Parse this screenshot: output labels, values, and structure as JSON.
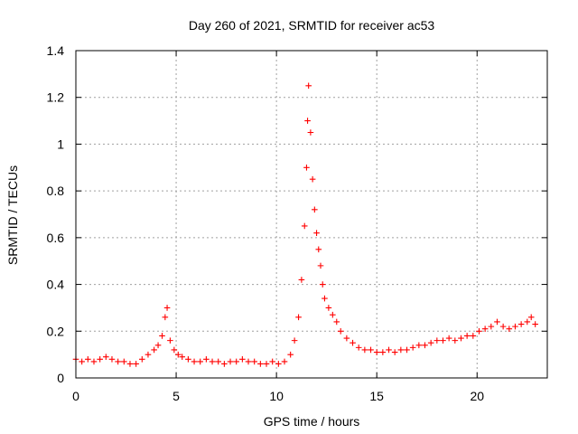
{
  "chart_data": {
    "type": "scatter",
    "title": "Day 260 of 2021, SRMTID for receiver ac53",
    "xlabel": "GPS time / hours",
    "ylabel": "SRMTID / TECUs",
    "xlim": [
      0,
      23.5
    ],
    "ylim": [
      0,
      1.4
    ],
    "x_ticks": [
      0,
      5,
      10,
      15,
      20
    ],
    "x_tick_labels": [
      "0",
      "5",
      "10",
      "15",
      "20"
    ],
    "y_ticks": [
      0,
      0.2,
      0.4,
      0.6,
      0.8,
      1.0,
      1.2,
      1.4
    ],
    "y_tick_labels": [
      "0",
      "0.2",
      "0.4",
      "0.6",
      "0.8",
      "1",
      "1.2",
      "1.4"
    ],
    "grid": true,
    "marker": "+",
    "color": "#ff0000",
    "series": [
      {
        "name": "SRMTID",
        "x": [
          0.0,
          0.3,
          0.6,
          0.9,
          1.2,
          1.5,
          1.8,
          2.1,
          2.4,
          2.7,
          3.0,
          3.3,
          3.6,
          3.9,
          4.1,
          4.3,
          4.45,
          4.55,
          4.7,
          4.9,
          5.1,
          5.3,
          5.6,
          5.9,
          6.2,
          6.5,
          6.8,
          7.1,
          7.4,
          7.7,
          8.0,
          8.3,
          8.6,
          8.9,
          9.2,
          9.5,
          9.8,
          10.1,
          10.4,
          10.7,
          10.9,
          11.1,
          11.25,
          11.4,
          11.5,
          11.55,
          11.6,
          11.7,
          11.8,
          11.9,
          12.0,
          12.1,
          12.2,
          12.3,
          12.4,
          12.6,
          12.8,
          13.0,
          13.2,
          13.5,
          13.8,
          14.1,
          14.4,
          14.7,
          15.0,
          15.3,
          15.6,
          15.9,
          16.2,
          16.5,
          16.8,
          17.1,
          17.4,
          17.7,
          18.0,
          18.3,
          18.6,
          18.9,
          19.2,
          19.5,
          19.8,
          20.1,
          20.4,
          20.7,
          21.0,
          21.3,
          21.6,
          21.9,
          22.2,
          22.5,
          22.7,
          22.9
        ],
        "y": [
          0.08,
          0.07,
          0.08,
          0.07,
          0.08,
          0.09,
          0.08,
          0.07,
          0.07,
          0.06,
          0.06,
          0.08,
          0.1,
          0.12,
          0.14,
          0.18,
          0.26,
          0.3,
          0.16,
          0.12,
          0.1,
          0.09,
          0.08,
          0.07,
          0.07,
          0.08,
          0.07,
          0.07,
          0.06,
          0.07,
          0.07,
          0.08,
          0.07,
          0.07,
          0.06,
          0.06,
          0.07,
          0.06,
          0.07,
          0.1,
          0.16,
          0.26,
          0.42,
          0.65,
          0.9,
          1.1,
          1.25,
          1.05,
          0.85,
          0.72,
          0.62,
          0.55,
          0.48,
          0.4,
          0.34,
          0.3,
          0.27,
          0.24,
          0.2,
          0.17,
          0.15,
          0.13,
          0.12,
          0.12,
          0.11,
          0.11,
          0.12,
          0.11,
          0.12,
          0.12,
          0.13,
          0.14,
          0.14,
          0.15,
          0.16,
          0.16,
          0.17,
          0.16,
          0.17,
          0.18,
          0.18,
          0.2,
          0.21,
          0.22,
          0.24,
          0.22,
          0.21,
          0.22,
          0.23,
          0.24,
          0.26,
          0.23
        ]
      }
    ]
  }
}
